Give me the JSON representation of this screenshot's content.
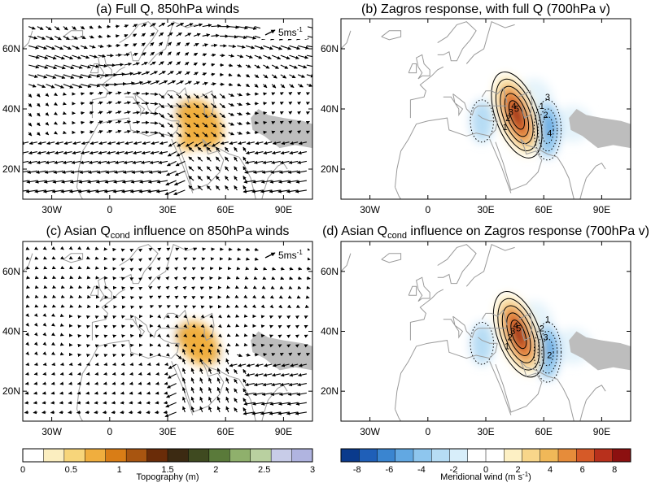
{
  "panels": [
    {
      "id": "a",
      "title": "(a) Full Q, 850hPa winds",
      "kind": "wind",
      "ref_vector_label": "5ms",
      "topo_blobs": [
        [
          42,
          38,
          7,
          5,
          1.3,
          -35
        ],
        [
          51,
          33,
          7,
          5,
          1.6,
          -40
        ],
        [
          40,
          29,
          4,
          3,
          0.7,
          0
        ],
        [
          47,
          35,
          10,
          9,
          0.6,
          -35
        ]
      ]
    },
    {
      "id": "b",
      "title": "(b) Zagros response, with full Q (700hPa v)",
      "kind": "response",
      "pos_center": [
        46,
        38
      ],
      "neg_center": [
        62,
        33
      ],
      "contour_labels": [
        "1",
        "2",
        "3",
        "4",
        "5",
        "1",
        "2",
        "3",
        "4"
      ]
    },
    {
      "id": "c",
      "title_prefix": "(c) Asian Q",
      "title_sub": "cond",
      "title_suffix": " influence on 850hPa winds",
      "kind": "wind",
      "ref_vector_label": "5ms",
      "topo_blobs": [
        [
          42,
          38,
          7,
          5,
          1.4,
          -35
        ],
        [
          50,
          34,
          6,
          5,
          1.3,
          -40
        ],
        [
          46,
          36,
          9,
          8,
          0.6,
          -35
        ]
      ]
    },
    {
      "id": "d",
      "title_prefix": "(d) Asian Q",
      "title_sub": "cond",
      "title_suffix": " influence on Zagros response (700hPa v)",
      "kind": "response",
      "pos_center": [
        47,
        39
      ],
      "neg_center": [
        62,
        33
      ],
      "contour_labels": [
        "1",
        "2",
        "3",
        "4",
        "5",
        "2",
        "3",
        "1",
        "2"
      ]
    }
  ],
  "chart_data": [
    {
      "type": "heatmap",
      "name": "panel-a",
      "field": "850hPa winds over topography (Full Q)",
      "xlim": [
        -45,
        105
      ],
      "ylim": [
        10,
        70
      ],
      "x_ticks": [
        "30W",
        "0",
        "30E",
        "60E",
        "90E"
      ],
      "x_tick_values": [
        -30,
        0,
        30,
        60,
        90
      ],
      "y_ticks": [
        "20N",
        "40N",
        "60N"
      ],
      "y_tick_values": [
        20,
        40,
        60
      ],
      "reference_vector": {
        "value": 5,
        "units": "ms-1"
      }
    },
    {
      "type": "heatmap",
      "name": "panel-b",
      "field": "Zagros response, meridional wind 700hPa (m s-1)",
      "xlim": [
        -45,
        105
      ],
      "ylim": [
        10,
        70
      ],
      "x_ticks": [
        "30W",
        "0",
        "30E",
        "60E",
        "90E"
      ],
      "x_tick_values": [
        -30,
        0,
        30,
        60,
        90
      ],
      "y_ticks": [
        "20N",
        "40N",
        "60N"
      ],
      "y_tick_values": [
        20,
        40,
        60
      ],
      "max_positive": {
        "lon": 46,
        "lat": 38,
        "value": 6
      },
      "min_negative": {
        "lon": 62,
        "lat": 33,
        "value": -4
      }
    },
    {
      "type": "heatmap",
      "name": "panel-c",
      "field": "Asian Qcond influence on 850hPa winds",
      "xlim": [
        -45,
        105
      ],
      "ylim": [
        10,
        70
      ],
      "x_ticks": [
        "30W",
        "0",
        "30E",
        "60E",
        "90E"
      ],
      "x_tick_values": [
        -30,
        0,
        30,
        60,
        90
      ],
      "y_ticks": [
        "20N",
        "40N",
        "60N"
      ],
      "y_tick_values": [
        20,
        40,
        60
      ],
      "reference_vector": {
        "value": 5,
        "units": "ms-1"
      }
    },
    {
      "type": "heatmap",
      "name": "panel-d",
      "field": "Asian Qcond influence on Zagros response, 700hPa v (m s-1)",
      "xlim": [
        -45,
        105
      ],
      "ylim": [
        10,
        70
      ],
      "x_ticks": [
        "30W",
        "0",
        "30E",
        "60E",
        "90E"
      ],
      "x_tick_values": [
        -30,
        0,
        30,
        60,
        90
      ],
      "y_ticks": [
        "20N",
        "40N",
        "60N"
      ],
      "y_tick_values": [
        20,
        40,
        60
      ],
      "max_positive": {
        "lon": 47,
        "lat": 39,
        "value": 6
      },
      "min_negative": {
        "lon": 62,
        "lat": 33,
        "value": -3
      }
    },
    {
      "type": "colorbar",
      "name": "topography-colorbar",
      "label": "Topography (m)",
      "ticks": [
        "0",
        "0.5",
        "1",
        "1.5",
        "2",
        "2.5",
        "3"
      ],
      "tick_values": [
        0,
        0.5,
        1,
        1.5,
        2,
        2.5,
        3
      ],
      "range": [
        0,
        3
      ],
      "colors": [
        "#ffffff",
        "#fbeec0",
        "#f7d57a",
        "#f0ae3e",
        "#d97d16",
        "#a85510",
        "#6a2c08",
        "#3c2a12",
        "#3f4a20",
        "#5a7a3a",
        "#8fb06c",
        "#b9d0a0",
        "#c8cce8",
        "#b0b4e0"
      ]
    },
    {
      "type": "colorbar",
      "name": "meridional-wind-colorbar",
      "label": "Meridional wind (m s-1)",
      "ticks": [
        "-8",
        "-6",
        "-4",
        "-2",
        "0",
        "2",
        "4",
        "6",
        "8"
      ],
      "tick_values": [
        -8,
        -6,
        -4,
        -2,
        0,
        2,
        4,
        6,
        8
      ],
      "range": [
        -9,
        9
      ],
      "colors": [
        "#0a3a8c",
        "#1f5fb8",
        "#3a85d0",
        "#62a8e2",
        "#8ec6ee",
        "#b6dcf4",
        "#d8eefa",
        "#ffffff",
        "#ffffff",
        "#fdf0c4",
        "#f8d68a",
        "#f0b858",
        "#e68c3a",
        "#d65a28",
        "#b8301c",
        "#8c1010"
      ]
    }
  ],
  "axes_color": "#000000",
  "coast_color": "#9a9a9a",
  "land_mask_color": "#bdbdbd",
  "icons": {
    "reference_arrow": "arrow-right-icon"
  }
}
